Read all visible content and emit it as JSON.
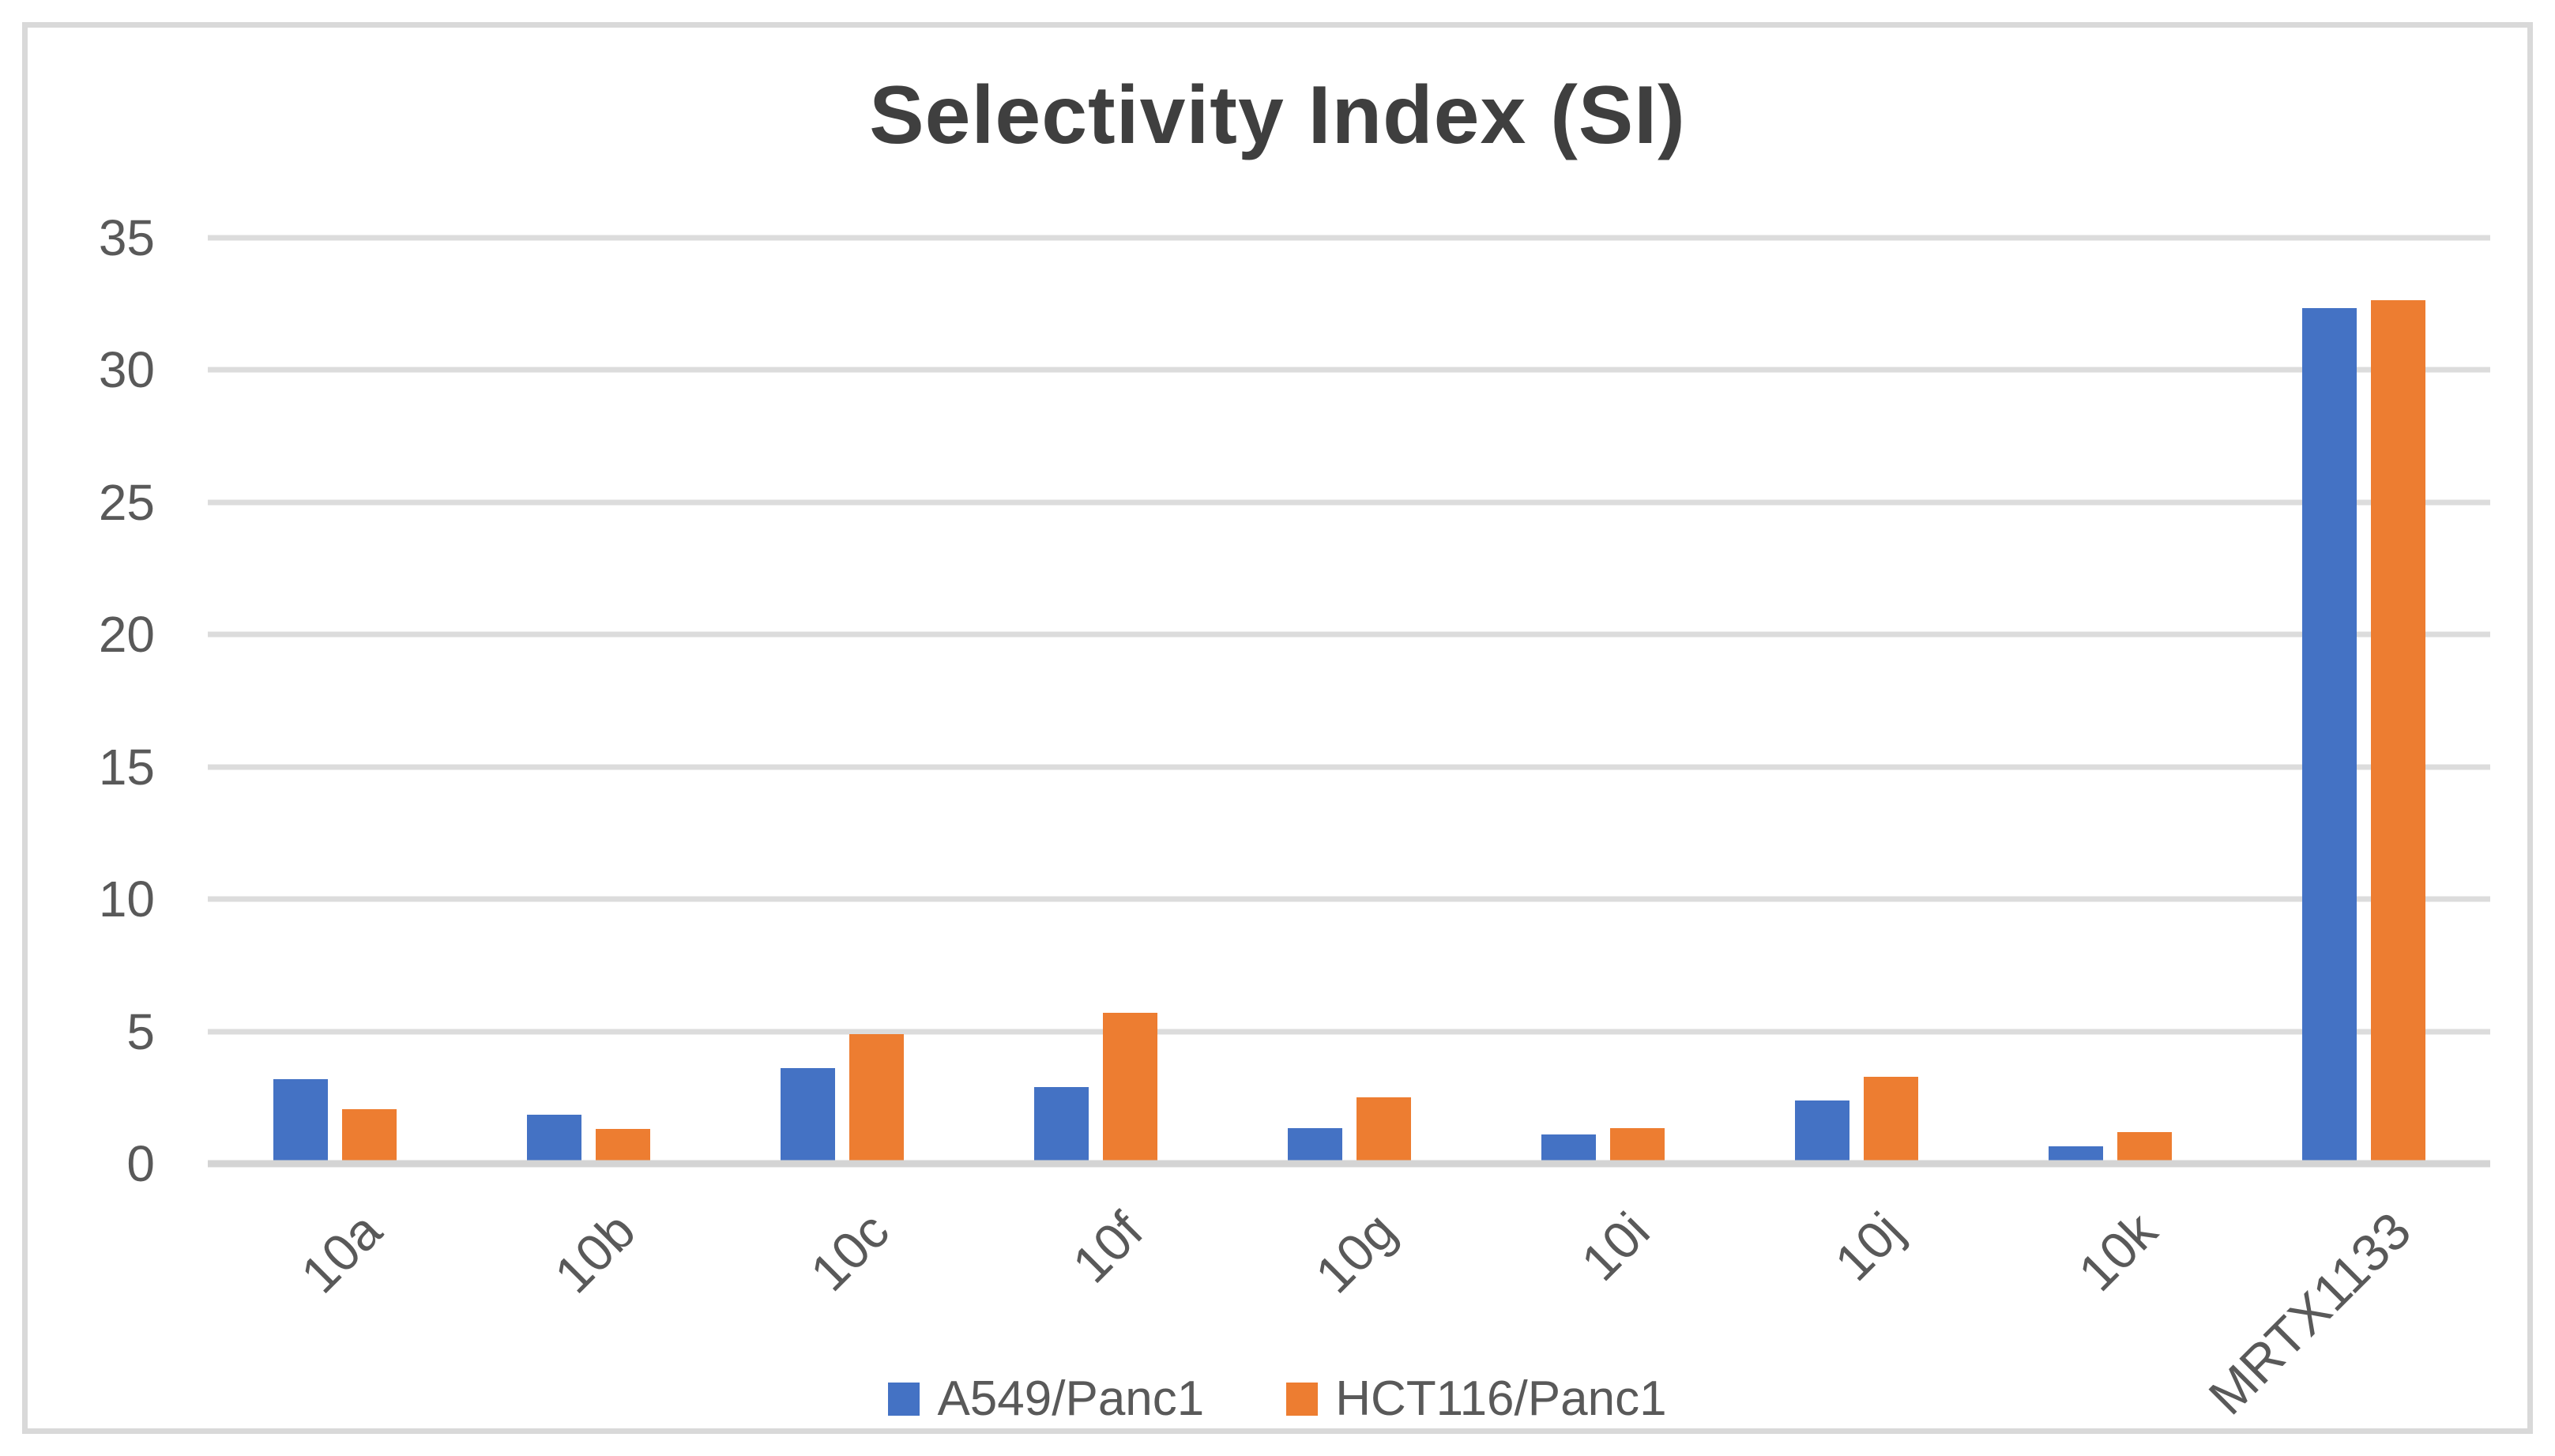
{
  "title": "Selectivity Index (SI)",
  "colors": {
    "series_blue": "#4472C4",
    "series_orange": "#ED7D31",
    "gridline": "#DCDCDC",
    "axis_text": "#595959",
    "title_text": "#3F3F3F",
    "frame_border": "#D9D9D9"
  },
  "chart_data": {
    "type": "bar",
    "title": "Selectivity Index (SI)",
    "categories": [
      "10a",
      "10b",
      "10c",
      "10f",
      "10g",
      "10i",
      "10j",
      "10k",
      "MRTX1133"
    ],
    "series": [
      {
        "name": "A549/Panc1",
        "color": "#4472C4",
        "values": [
          3.2,
          1.85,
          3.6,
          2.9,
          1.35,
          1.1,
          2.4,
          0.65,
          32.35
        ]
      },
      {
        "name": "HCT116/Panc1",
        "color": "#ED7D31",
        "values": [
          2.05,
          1.3,
          4.9,
          5.7,
          2.5,
          1.35,
          3.3,
          1.2,
          32.65
        ]
      }
    ],
    "xlabel": "",
    "ylabel": "",
    "ylim": [
      0,
      35
    ],
    "yticks": [
      0,
      5,
      10,
      15,
      20,
      25,
      30,
      35
    ],
    "grid": true,
    "legend_position": "bottom",
    "x_tick_rotation_deg": -45
  }
}
